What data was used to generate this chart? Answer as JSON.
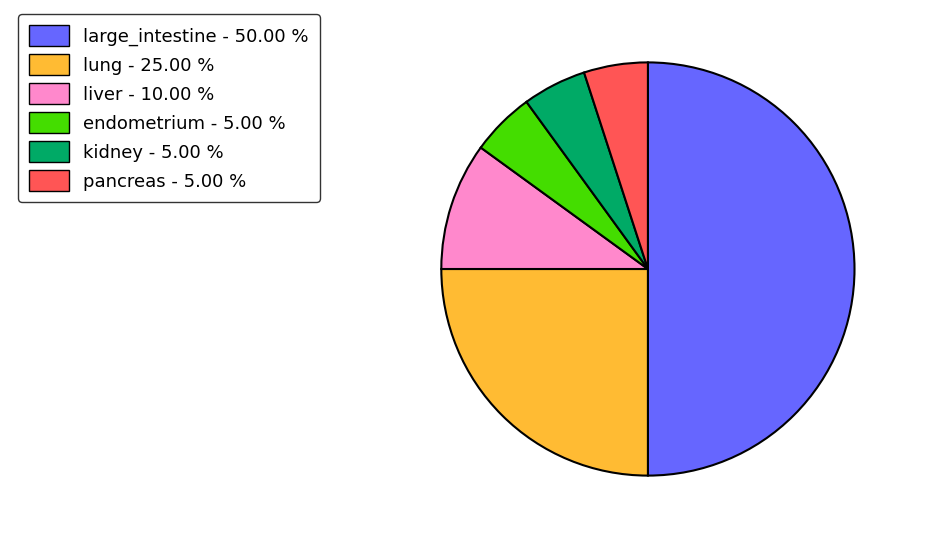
{
  "labels": [
    "large_intestine",
    "lung",
    "liver",
    "endometrium",
    "kidney",
    "pancreas"
  ],
  "sizes": [
    50.0,
    25.0,
    10.0,
    5.0,
    5.0,
    5.0
  ],
  "colors": [
    "#6666ff",
    "#ffbb33",
    "#ff88cc",
    "#44dd00",
    "#00aa66",
    "#ff5555"
  ],
  "legend_labels": [
    "large_intestine - 50.00 %",
    "lung - 25.00 %",
    "liver - 10.00 %",
    "endometrium - 5.00 %",
    "kidney - 5.00 %",
    "pancreas - 5.00 %"
  ],
  "startangle": 90,
  "figsize": [
    9.39,
    5.38
  ],
  "dpi": 100,
  "background_color": "#ffffff"
}
